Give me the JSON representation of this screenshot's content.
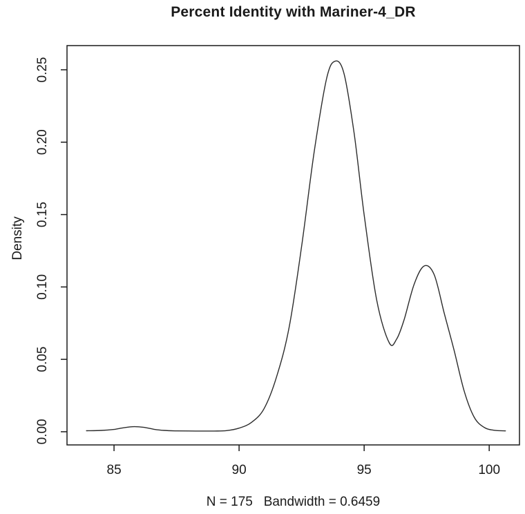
{
  "chart_data": {
    "type": "line",
    "title": "Percent Identity with Mariner-4_DR",
    "xlabel": "N = 175   Bandwidth = 0.6459",
    "ylabel": "Density",
    "n": 175,
    "bandwidth": 0.6459,
    "grid": false,
    "legend_position": "none",
    "xlim": [
      83.12,
      101.21
    ],
    "ylim": [
      -0.0091,
      0.2667
    ],
    "x_ticks": {
      "values": [
        85,
        90,
        95,
        100
      ],
      "labels": [
        "85",
        "90",
        "95",
        "100"
      ]
    },
    "y_ticks": {
      "values": [
        0,
        0.05,
        0.1,
        0.15,
        0.2,
        0.25
      ],
      "labels": [
        "0.00",
        "0.05",
        "0.10",
        "0.15",
        "0.20",
        "0.25"
      ]
    },
    "series": [
      {
        "name": "density",
        "color": "#2b2b2b",
        "x": [
          83.9,
          84.5,
          85.0,
          85.4,
          85.8,
          86.2,
          86.6,
          87.0,
          87.5,
          88.25,
          89.0,
          89.5,
          90.0,
          90.5,
          91.0,
          91.5,
          92.0,
          92.5,
          93.0,
          93.5,
          93.85,
          94.2,
          94.6,
          95.0,
          95.5,
          96.0,
          96.3,
          96.6,
          97.0,
          97.4,
          97.8,
          98.2,
          98.6,
          99.0,
          99.4,
          99.8,
          100.2,
          100.65
        ],
        "y": [
          0.0007,
          0.0009,
          0.0016,
          0.0028,
          0.0035,
          0.003,
          0.0017,
          0.0009,
          0.0006,
          0.0005,
          0.0005,
          0.0008,
          0.0025,
          0.0065,
          0.016,
          0.038,
          0.072,
          0.128,
          0.193,
          0.244,
          0.256,
          0.247,
          0.206,
          0.15,
          0.091,
          0.0615,
          0.064,
          0.0775,
          0.102,
          0.1145,
          0.1085,
          0.082,
          0.056,
          0.028,
          0.01,
          0.003,
          0.001,
          0.0006
        ]
      }
    ],
    "annotations": {
      "main_peak": {
        "x": 93.85,
        "y": 0.256
      },
      "valley": {
        "x": 96.0,
        "y": 0.061
      },
      "secondary_peak": {
        "x": 97.4,
        "y": 0.1145
      },
      "minor_bump": {
        "x": 85.8,
        "y": 0.0035
      }
    }
  },
  "colors": {
    "foreground": "#1a1a1a",
    "background": "#ffffff",
    "curve": "#2b2b2b"
  }
}
